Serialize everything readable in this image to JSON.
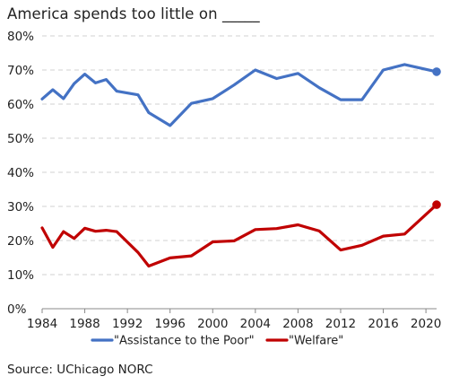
{
  "chart_data": {
    "type": "line",
    "title": "America spends too little on _____",
    "source": "Source: UChicago NORC",
    "xlabel": "",
    "ylabel": "",
    "xlim": [
      1984,
      2021
    ],
    "ylim": [
      0,
      80
    ],
    "x_ticks": [
      "1984",
      "1988",
      "1992",
      "1996",
      "2000",
      "2004",
      "2008",
      "2012",
      "2016",
      "2020"
    ],
    "y_ticks": [
      "0%",
      "10%",
      "20%",
      "30%",
      "40%",
      "50%",
      "60%",
      "70%",
      "80%"
    ],
    "grid": true,
    "legend_position": "bottom",
    "series": [
      {
        "name": "\"Assistance to the Poor\"",
        "color": "#4472C4",
        "x": [
          1984,
          1985,
          1986,
          1987,
          1988,
          1989,
          1990,
          1991,
          1993,
          1994,
          1996,
          1998,
          2000,
          2002,
          2004,
          2006,
          2008,
          2010,
          2012,
          2014,
          2016,
          2018,
          2021
        ],
        "y": [
          61.5,
          64.2,
          61.6,
          66.0,
          68.8,
          66.2,
          67.2,
          63.8,
          62.7,
          57.5,
          53.7,
          60.2,
          61.6,
          65.6,
          70.0,
          67.5,
          69.0,
          64.8,
          61.3,
          61.3,
          70.0,
          71.6,
          69.5
        ]
      },
      {
        "name": "\"Welfare\"",
        "color": "#C00000",
        "x": [
          1984,
          1985,
          1986,
          1987,
          1988,
          1989,
          1990,
          1991,
          1993,
          1994,
          1996,
          1998,
          2000,
          2002,
          2004,
          2006,
          2008,
          2010,
          2012,
          2014,
          2016,
          2018,
          2021
        ],
        "y": [
          23.7,
          18.0,
          22.6,
          20.6,
          23.6,
          22.7,
          23.0,
          22.6,
          16.5,
          12.5,
          14.9,
          15.5,
          19.6,
          19.9,
          23.2,
          23.5,
          24.6,
          22.8,
          17.2,
          18.6,
          21.3,
          21.9,
          30.5
        ]
      }
    ]
  }
}
